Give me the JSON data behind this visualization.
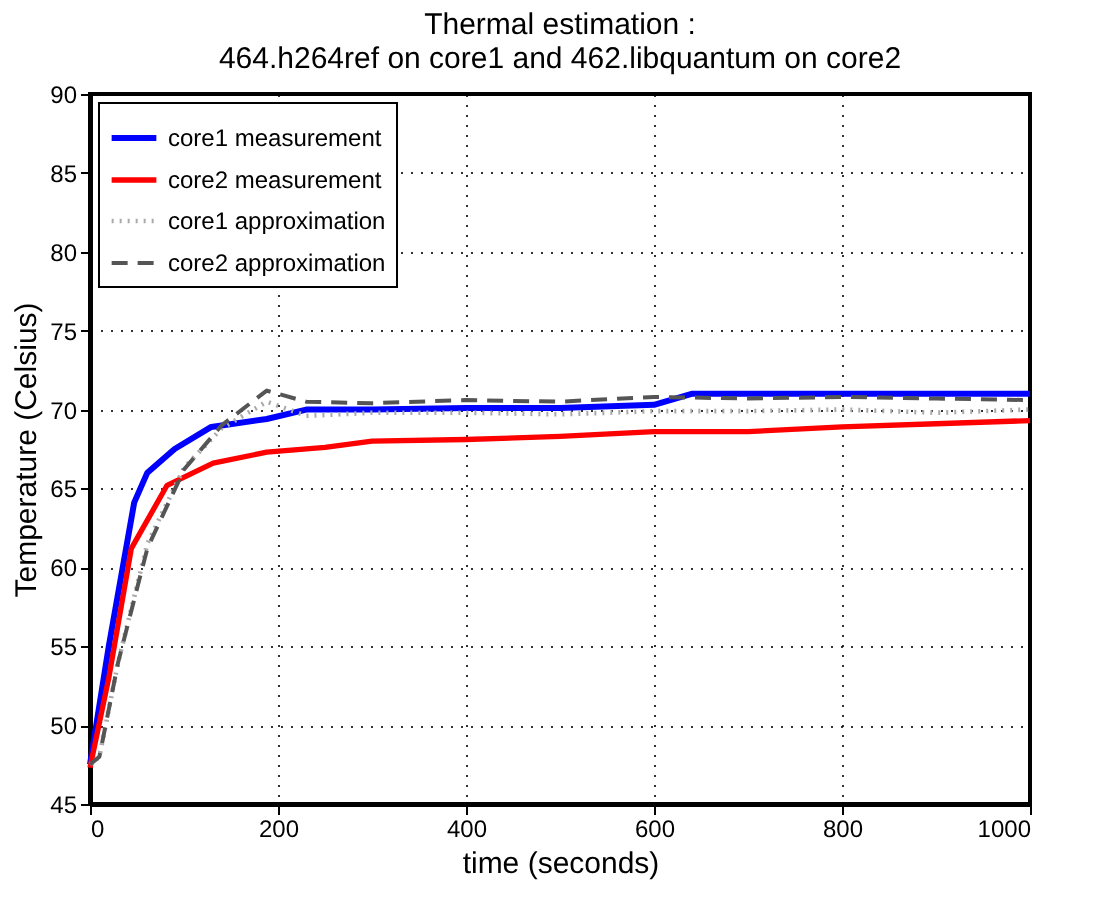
{
  "chart_data": {
    "type": "line",
    "title": "Thermal estimation :",
    "subtitle": "464.h264ref on core1 and 462.libquantum on core2",
    "xlabel": "time (seconds)",
    "ylabel": "Temperature (Celsius)",
    "xlim": [
      0,
      1000
    ],
    "ylim": [
      45,
      90
    ],
    "xticks": [
      0,
      200,
      400,
      600,
      800,
      1000
    ],
    "yticks": [
      45,
      50,
      55,
      60,
      65,
      70,
      75,
      80,
      85,
      90
    ],
    "grid": true,
    "legend": "top left",
    "series": [
      {
        "name": "core1 measurement",
        "color": "#0000ff",
        "line_style": "solid",
        "x": [
          0,
          20,
          47,
          61,
          90,
          129,
          188,
          230,
          300,
          400,
          500,
          600,
          640,
          700,
          800,
          900,
          1000
        ],
        "values": [
          47.5,
          55,
          64.1,
          66,
          67.5,
          68.9,
          69.4,
          70,
          70,
          70.1,
          70.1,
          70.3,
          71,
          71,
          71,
          71,
          71
        ]
      },
      {
        "name": "core2 measurement",
        "color": "#ff0000",
        "line_style": "solid",
        "x": [
          0,
          20,
          44,
          82,
          131,
          188,
          250,
          300,
          400,
          500,
          600,
          700,
          800,
          900,
          1000
        ],
        "values": [
          47.3,
          53,
          61.2,
          65.2,
          66.6,
          67.3,
          67.6,
          68,
          68.1,
          68.3,
          68.6,
          68.6,
          68.9,
          69.1,
          69.3
        ]
      },
      {
        "name": "core1 approximation",
        "color": "#aaaaaa",
        "line_style": "dotted",
        "x": [
          0,
          10,
          30,
          61,
          100,
          140,
          188,
          230,
          300,
          400,
          500,
          600,
          700,
          800,
          900,
          1000
        ],
        "values": [
          47.5,
          48,
          54,
          61.5,
          66.3,
          68.8,
          70.5,
          69.6,
          69.8,
          69.8,
          69.7,
          69.9,
          69.9,
          70,
          69.8,
          70
        ]
      },
      {
        "name": "core2 approximation",
        "color": "#555555",
        "line_style": "dashed",
        "x": [
          0,
          10,
          30,
          61,
          100,
          140,
          188,
          230,
          300,
          400,
          500,
          600,
          700,
          800,
          900,
          1000
        ],
        "values": [
          47.5,
          48,
          54,
          61.2,
          66.2,
          69,
          71.2,
          70.5,
          70.4,
          70.6,
          70.5,
          70.8,
          70.7,
          70.8,
          70.7,
          70.6
        ]
      }
    ]
  }
}
